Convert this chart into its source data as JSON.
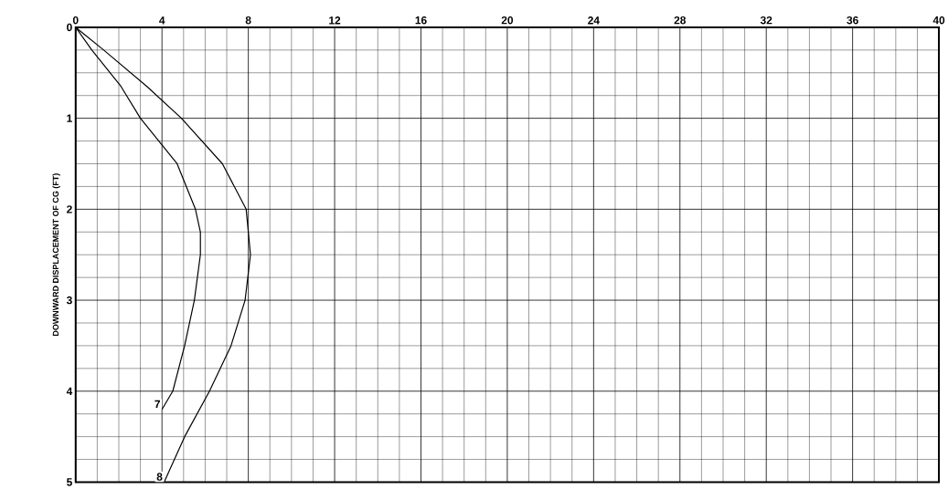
{
  "chart_data": {
    "type": "line",
    "ylabel": "DOWNWARD DISPLACEMENT OF CG (FT)",
    "xlim": [
      0,
      40
    ],
    "xticks": [
      0,
      4,
      8,
      12,
      16,
      20,
      24,
      28,
      32,
      36,
      40
    ],
    "ylim": [
      5,
      0
    ],
    "yticks": [
      0,
      1,
      2,
      3,
      4,
      5
    ],
    "grid": true,
    "series": [
      {
        "name": "7",
        "color": "#000000",
        "x": [
          0,
          0.75,
          2.1,
          3.0,
          4.7,
          5.55,
          5.78,
          5.78,
          5.5,
          5.05,
          4.5,
          4.0
        ],
        "values": [
          0,
          0.25,
          0.65,
          1,
          1.5,
          2,
          2.25,
          2.5,
          3,
          3.5,
          4,
          4.2
        ]
      },
      {
        "name": "8",
        "color": "#000000",
        "x": [
          0,
          1.3,
          3.3,
          4.9,
          6.8,
          7.9,
          8.1,
          7.85,
          7.2,
          6.2,
          5.05,
          4.1
        ],
        "values": [
          0,
          0.25,
          0.65,
          1,
          1.5,
          2,
          2.5,
          3,
          3.5,
          4,
          4.5,
          5
        ]
      }
    ]
  }
}
